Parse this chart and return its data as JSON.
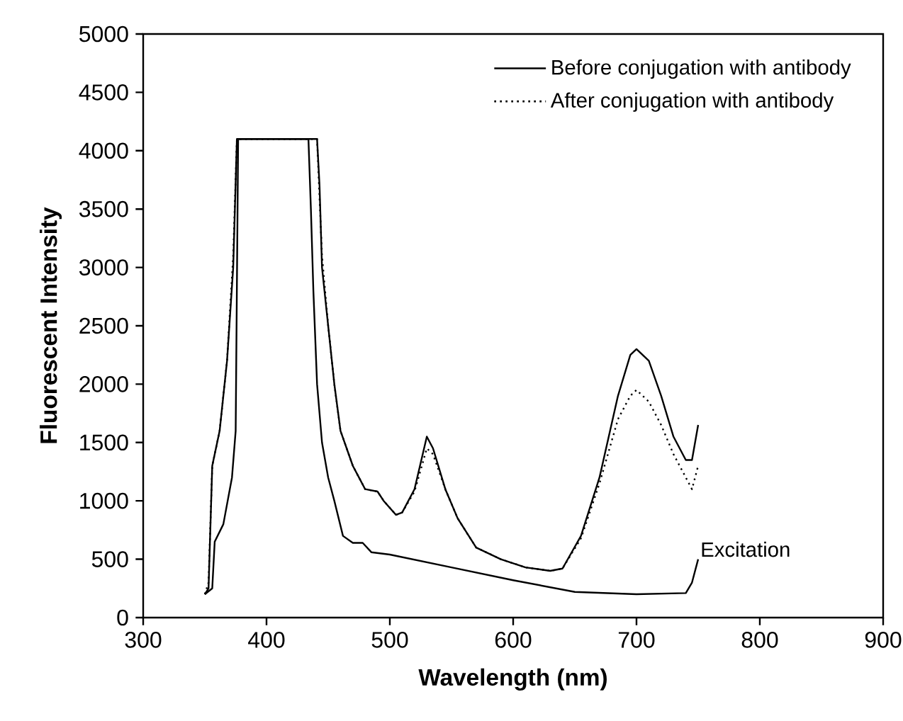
{
  "chart_data": {
    "type": "line",
    "xlabel": "Wavelength (nm)",
    "ylabel": "Fluorescent Intensity",
    "xlim": [
      300,
      900
    ],
    "xticks": [
      300,
      400,
      500,
      600,
      700,
      800,
      900
    ],
    "ylim": [
      0,
      5000
    ],
    "yticks": [
      0,
      500,
      1000,
      1500,
      2000,
      2500,
      3000,
      3500,
      4000,
      4500,
      5000
    ],
    "grid": false,
    "legend": "top right",
    "marker": "none",
    "series": [
      {
        "name": "Before conjugation with antibody",
        "color": "#000000",
        "line_style": "solid",
        "x": [
          350,
          353,
          356,
          362,
          368,
          373,
          376,
          400,
          441,
          443,
          445,
          450,
          455,
          460,
          470,
          480,
          490,
          495,
          505,
          510,
          520,
          530,
          535,
          545,
          555,
          570,
          590,
          610,
          630,
          640,
          655,
          670,
          685,
          695,
          700,
          710,
          720,
          730,
          740,
          745,
          750
        ],
        "values": [
          200,
          250,
          1300,
          1600,
          2200,
          3000,
          4100,
          4100,
          4100,
          3700,
          3000,
          2500,
          2000,
          1600,
          1300,
          1100,
          1080,
          1000,
          880,
          900,
          1100,
          1550,
          1450,
          1100,
          850,
          600,
          500,
          430,
          400,
          420,
          700,
          1200,
          1900,
          2250,
          2300,
          2200,
          1900,
          1550,
          1350,
          1350,
          1650
        ]
      },
      {
        "name": "After conjugation with antibody",
        "color": "#000000",
        "line_style": "dotted",
        "x": [
          350,
          353,
          356,
          362,
          368,
          373,
          376,
          400,
          441,
          443,
          445,
          450,
          455,
          460,
          470,
          480,
          490,
          495,
          505,
          510,
          520,
          530,
          535,
          545,
          555,
          570,
          590,
          610,
          630,
          640,
          655,
          670,
          685,
          695,
          700,
          710,
          720,
          730,
          740,
          745,
          750
        ],
        "values": [
          200,
          300,
          1300,
          1600,
          2200,
          3100,
          4100,
          4100,
          4100,
          3600,
          3100,
          2500,
          2000,
          1600,
          1300,
          1100,
          1080,
          1000,
          880,
          900,
          1080,
          1450,
          1400,
          1100,
          850,
          600,
          500,
          430,
          400,
          420,
          680,
          1150,
          1700,
          1900,
          1950,
          1850,
          1650,
          1400,
          1200,
          1100,
          1300
        ]
      },
      {
        "color": "#000000",
        "line_style": "solid",
        "x": [
          350,
          356,
          358,
          365,
          372,
          375,
          377,
          400,
          434,
          436,
          438,
          441,
          445,
          450,
          455,
          462,
          470,
          478,
          485,
          500,
          550,
          600,
          650,
          700,
          740,
          745,
          750
        ],
        "values": [
          200,
          250,
          650,
          800,
          1200,
          1600,
          4100,
          4100,
          4100,
          3500,
          2800,
          2000,
          1500,
          1200,
          1000,
          700,
          640,
          640,
          560,
          540,
          430,
          320,
          220,
          200,
          210,
          300,
          500
        ]
      }
    ],
    "annotations": [
      {
        "text": "Excitation",
        "x": 750,
        "y": 500
      }
    ]
  }
}
